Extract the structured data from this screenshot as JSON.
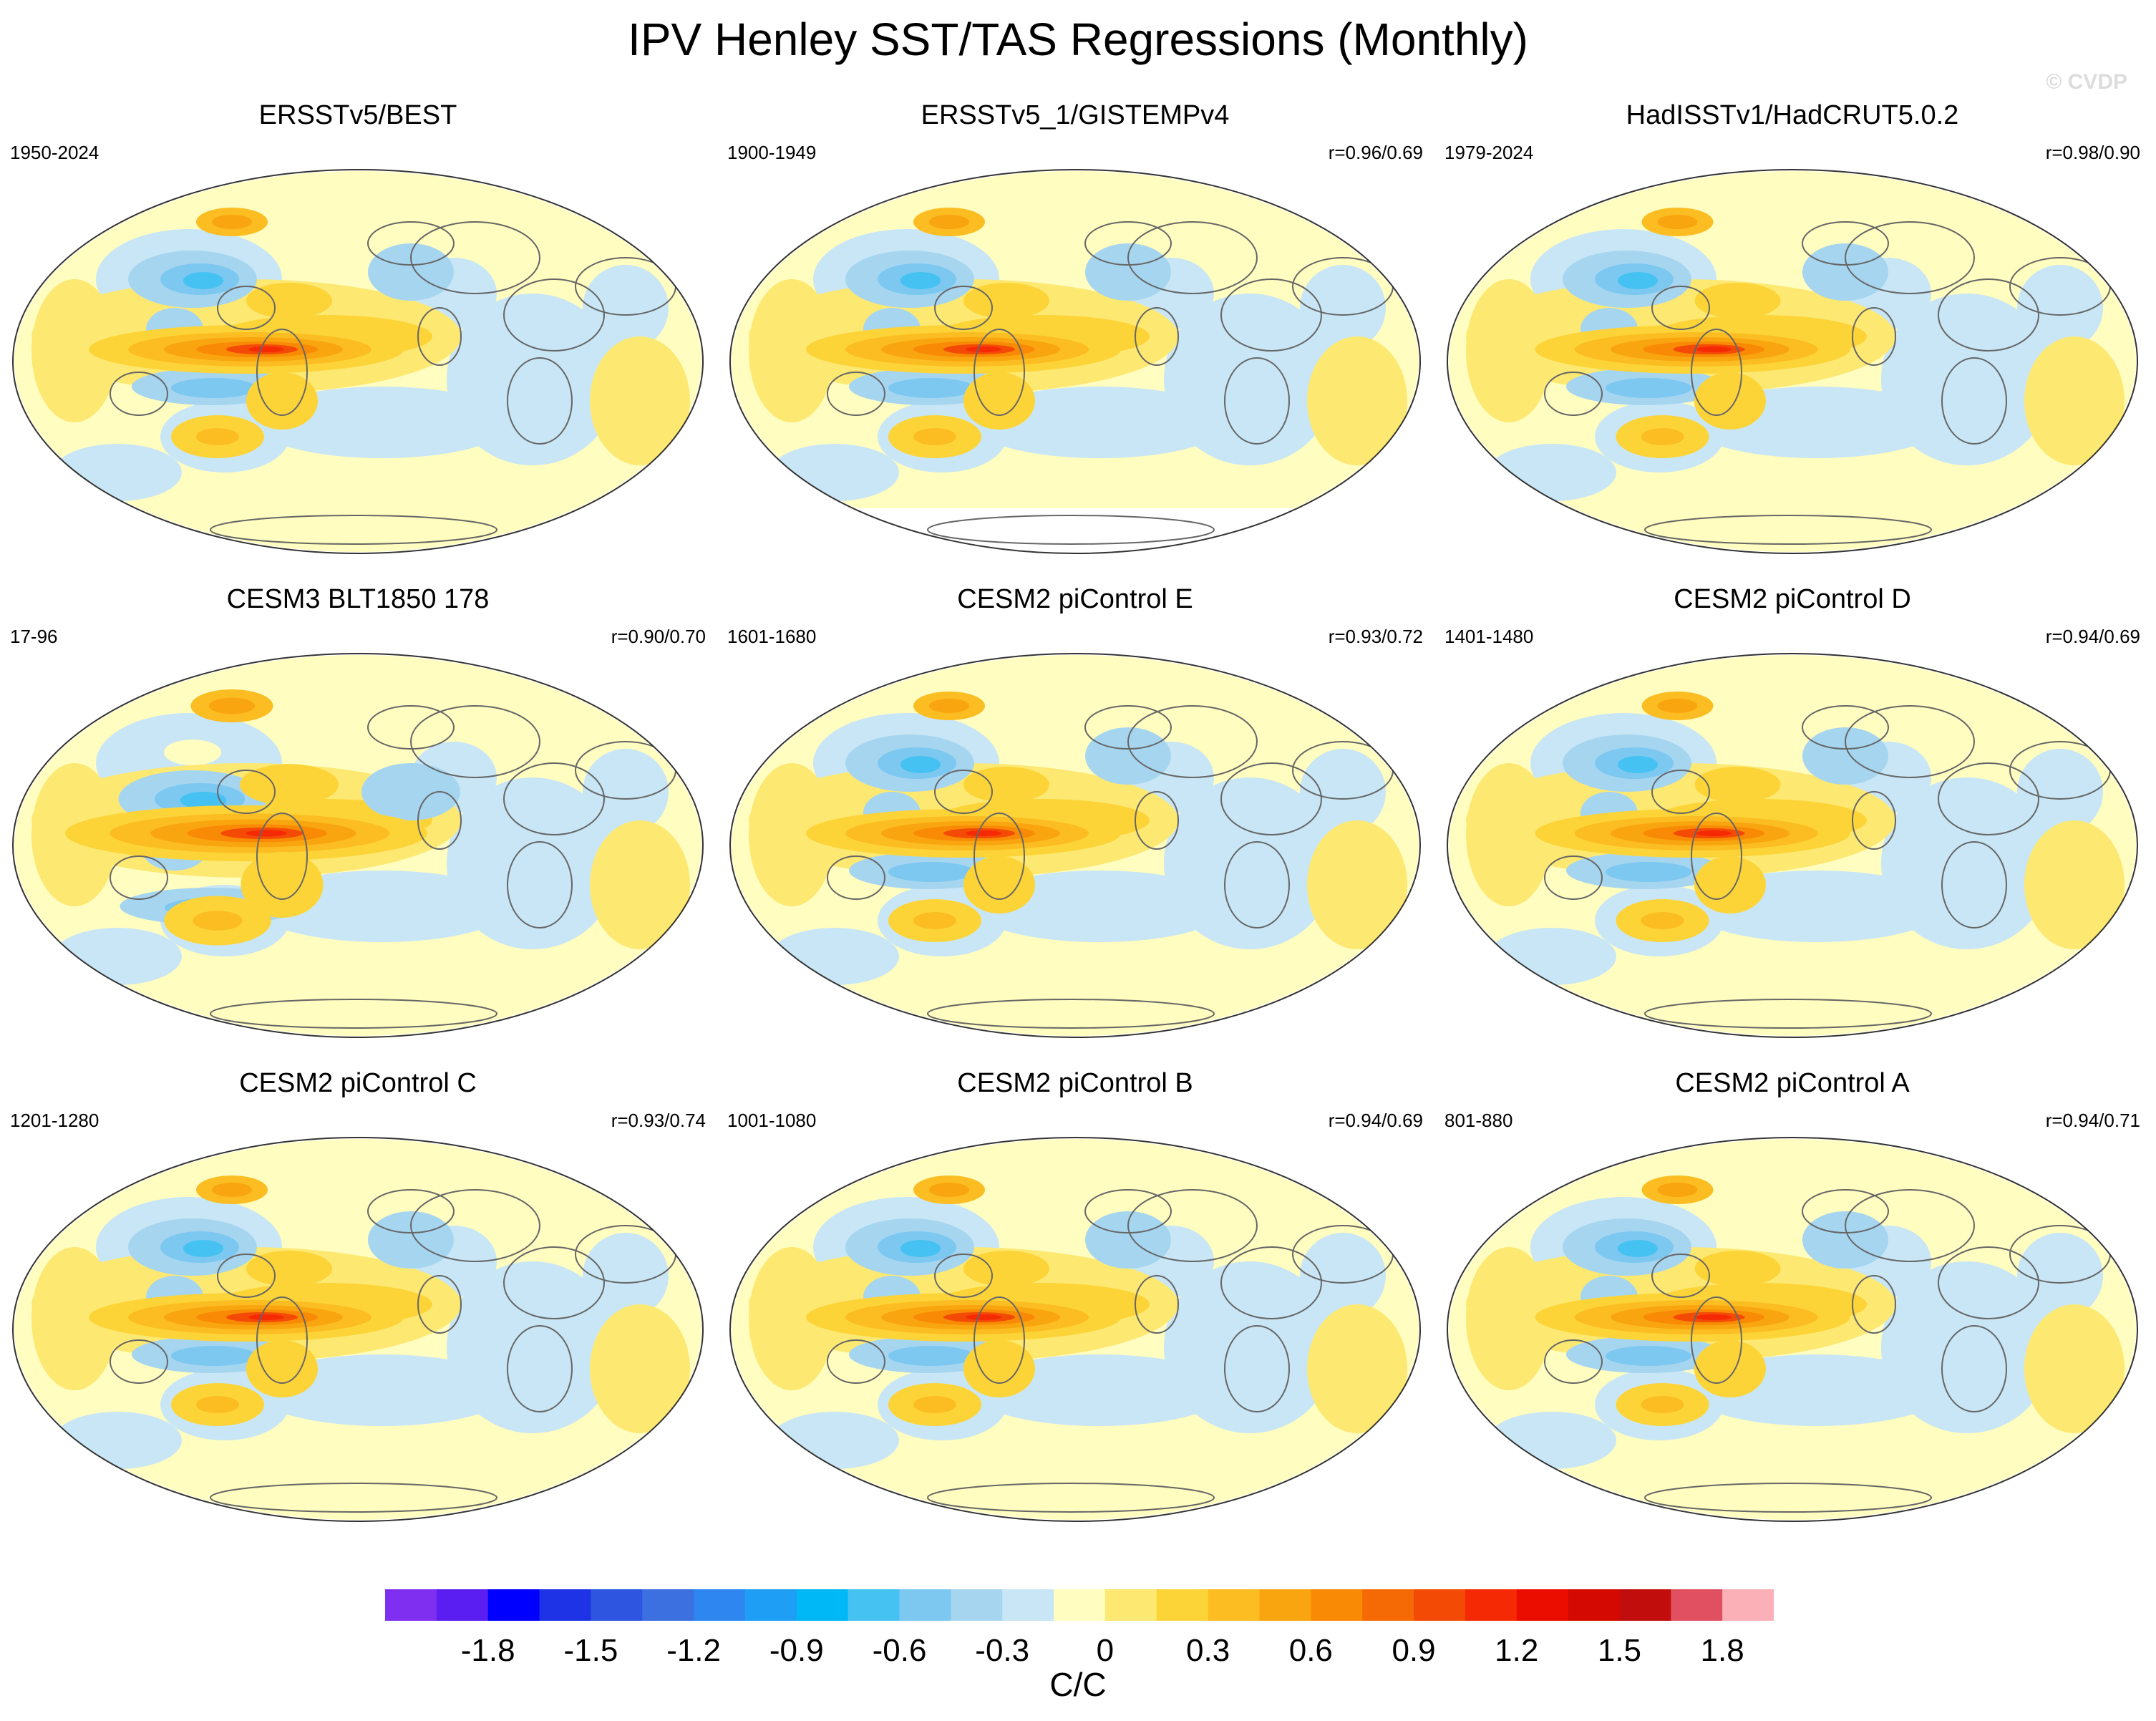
{
  "title": "IPV Henley SST/TAS Regressions (Monthly)",
  "watermark": "© CVDP",
  "colorbar": {
    "label": "C/C",
    "ticks": [
      "-1.8",
      "-1.5",
      "-1.2",
      "-0.9",
      "-0.6",
      "-0.3",
      "0",
      "0.3",
      "0.6",
      "0.9",
      "1.2",
      "1.5",
      "1.8"
    ],
    "levels": [
      -2.0,
      -1.8,
      -1.65,
      -1.5,
      -1.35,
      -1.2,
      -1.05,
      -0.9,
      -0.75,
      -0.6,
      -0.45,
      -0.3,
      -0.15,
      0,
      0.15,
      0.3,
      0.45,
      0.6,
      0.75,
      0.9,
      1.05,
      1.2,
      1.35,
      1.5,
      1.65,
      1.8,
      1.95,
      2.1
    ],
    "colors": [
      "#7f2fef",
      "#5a1ef2",
      "#0000ff",
      "#1e32e6",
      "#2d55e0",
      "#3c6fe0",
      "#2e86f0",
      "#1e9ef5",
      "#00b8f5",
      "#46c2f2",
      "#7cc8f0",
      "#a6d5f0",
      "#c8e6f5",
      "#fffdc0",
      "#fde872",
      "#fdd438",
      "#fbbd22",
      "#f9a50f",
      "#f98a05",
      "#f66a05",
      "#f34a05",
      "#f52a05",
      "#eb0e00",
      "#d40a02",
      "#c20d0d",
      "#e05060",
      "#fbb0b8"
    ]
  },
  "chart_data": [
    {
      "type": "heatmap",
      "title": "ERSSTv5/BEST",
      "period": "1950-2024",
      "correlation": ""
    },
    {
      "type": "heatmap",
      "title": "ERSSTv5_1/GISTEMPv4",
      "period": "1900-1949",
      "correlation": "r=0.96/0.69"
    },
    {
      "type": "heatmap",
      "title": "HadISSTv1/HadCRUT5.0.2",
      "period": "1979-2024",
      "correlation": "r=0.98/0.90"
    },
    {
      "type": "heatmap",
      "title": "CESM3 BLT1850 178",
      "period": "17-96",
      "correlation": "r=0.90/0.70"
    },
    {
      "type": "heatmap",
      "title": "CESM2 piControl E",
      "period": "1601-1680",
      "correlation": "r=0.93/0.72"
    },
    {
      "type": "heatmap",
      "title": "CESM2 piControl D",
      "period": "1401-1480",
      "correlation": "r=0.94/0.69"
    },
    {
      "type": "heatmap",
      "title": "CESM2 piControl C",
      "period": "1201-1280",
      "correlation": "r=0.93/0.74"
    },
    {
      "type": "heatmap",
      "title": "CESM2 piControl B",
      "period": "1001-1080",
      "correlation": "r=0.94/0.69"
    },
    {
      "type": "heatmap",
      "title": "CESM2 piControl A",
      "period": "801-880",
      "correlation": "r=0.94/0.71"
    }
  ]
}
